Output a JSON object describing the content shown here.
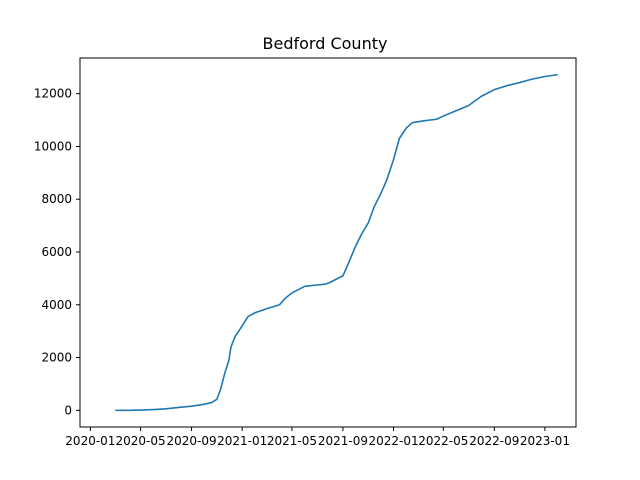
{
  "chart_data": {
    "type": "line",
    "title": "Bedford County",
    "xlabel": "",
    "ylabel": "",
    "grid": false,
    "x_ticks": [
      "2020-01",
      "2020-05",
      "2020-09",
      "2021-01",
      "2021-05",
      "2021-09",
      "2022-01",
      "2022-05",
      "2022-09",
      "2023-01"
    ],
    "y_ticks": [
      0,
      2000,
      4000,
      6000,
      8000,
      10000,
      12000
    ],
    "xlim": [
      "2019-12-07",
      "2023-03-17"
    ],
    "ylim": [
      -630,
      13350
    ],
    "series": [
      {
        "color": "#1f77b4",
        "points": [
          [
            "2020-03-01",
            0
          ],
          [
            "2020-04-01",
            3
          ],
          [
            "2020-05-01",
            12
          ],
          [
            "2020-06-01",
            30
          ],
          [
            "2020-07-01",
            60
          ],
          [
            "2020-08-01",
            110
          ],
          [
            "2020-09-01",
            160
          ],
          [
            "2020-10-01",
            230
          ],
          [
            "2020-10-20",
            300
          ],
          [
            "2020-11-01",
            420
          ],
          [
            "2020-11-10",
            800
          ],
          [
            "2020-11-20",
            1400
          ],
          [
            "2020-11-30",
            1900
          ],
          [
            "2020-12-05",
            2400
          ],
          [
            "2020-12-15",
            2800
          ],
          [
            "2021-01-01",
            3200
          ],
          [
            "2021-01-15",
            3550
          ],
          [
            "2021-02-01",
            3700
          ],
          [
            "2021-03-01",
            3850
          ],
          [
            "2021-04-01",
            4000
          ],
          [
            "2021-04-15",
            4250
          ],
          [
            "2021-05-01",
            4450
          ],
          [
            "2021-06-01",
            4700
          ],
          [
            "2021-07-01",
            4750
          ],
          [
            "2021-07-20",
            4780
          ],
          [
            "2021-08-01",
            4850
          ],
          [
            "2021-09-01",
            5100
          ],
          [
            "2021-09-15",
            5600
          ],
          [
            "2021-10-01",
            6200
          ],
          [
            "2021-10-15",
            6650
          ],
          [
            "2021-11-01",
            7100
          ],
          [
            "2021-11-15",
            7700
          ],
          [
            "2021-12-01",
            8200
          ],
          [
            "2021-12-15",
            8700
          ],
          [
            "2022-01-01",
            9500
          ],
          [
            "2022-01-15",
            10300
          ],
          [
            "2022-02-01",
            10700
          ],
          [
            "2022-02-15",
            10900
          ],
          [
            "2022-03-15",
            10970
          ],
          [
            "2022-04-15",
            11030
          ],
          [
            "2022-05-01",
            11150
          ],
          [
            "2022-06-01",
            11350
          ],
          [
            "2022-07-01",
            11550
          ],
          [
            "2022-08-01",
            11900
          ],
          [
            "2022-09-01",
            12150
          ],
          [
            "2022-10-01",
            12300
          ],
          [
            "2022-11-01",
            12420
          ],
          [
            "2022-12-01",
            12550
          ],
          [
            "2023-01-01",
            12650
          ],
          [
            "2023-02-01",
            12720
          ]
        ]
      }
    ]
  }
}
